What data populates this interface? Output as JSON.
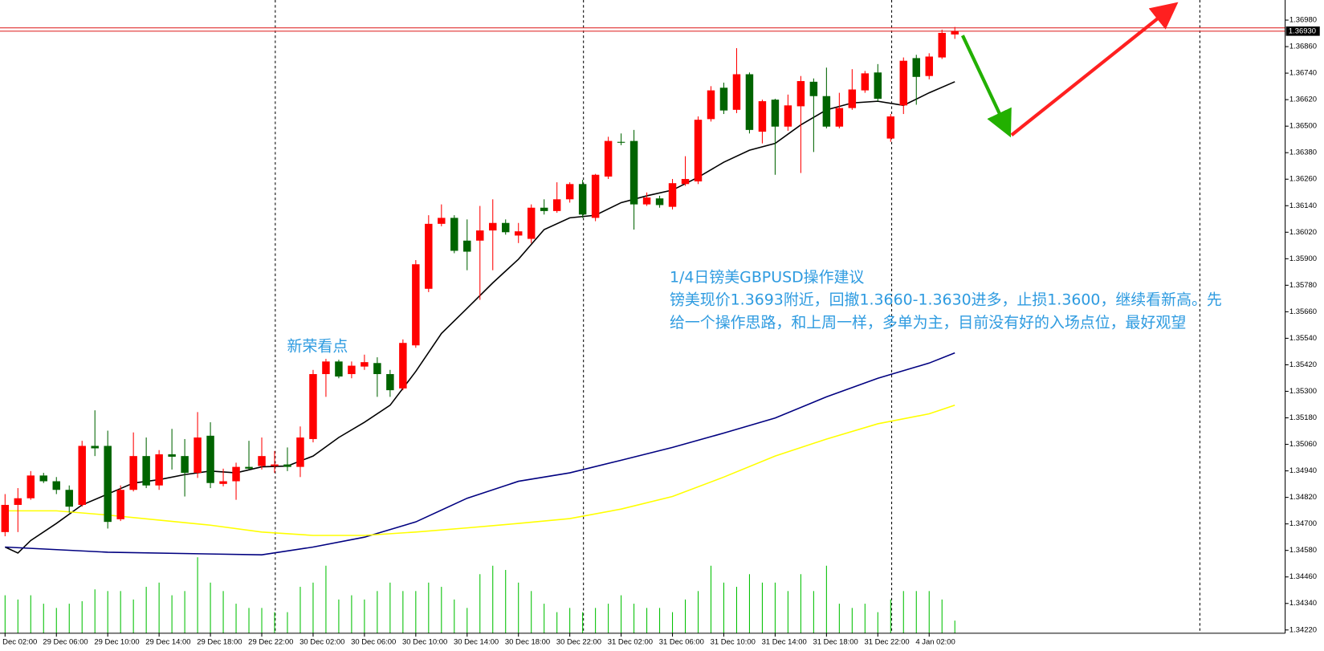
{
  "chart_data": {
    "type": "candlestick",
    "categories": [
      "Dec 02:00",
      null,
      null,
      null,
      "29 Dec 06:00",
      null,
      null,
      null,
      "29 Dec 10:00",
      null,
      null,
      null,
      "29 Dec 14:00",
      null,
      null,
      null,
      "29 Dec 18:00",
      null,
      null,
      null,
      "29 Dec 22:00",
      null,
      null,
      null,
      "30 Dec 02:00",
      null,
      null,
      null,
      "30 Dec 06:00",
      null,
      null,
      null,
      "30 Dec 10:00",
      null,
      null,
      null,
      "30 Dec 14:00",
      null,
      null,
      null,
      "30 Dec 18:00",
      null,
      null,
      null,
      "30 Dec 22:00",
      null,
      null,
      null,
      "31 Dec 02:00",
      null,
      null,
      null,
      "31 Dec 06:00",
      null,
      null,
      null,
      "31 Dec 10:00",
      null,
      null,
      null,
      "31 Dec 14:00",
      null,
      null,
      null,
      "31 Dec 18:00",
      null,
      null,
      null,
      "31 Dec 22:00",
      null,
      null,
      null,
      "4 Jan 02:00",
      null,
      null
    ],
    "open": [
      1.34663,
      1.34786,
      1.34816,
      1.34919,
      1.34893,
      1.34854,
      1.34786,
      1.35053,
      1.35053,
      1.34721,
      1.34854,
      1.35007,
      1.34874,
      1.35015,
      1.35007,
      1.34931,
      1.35099,
      1.34881,
      1.34893,
      1.34958,
      1.34962,
      1.34962,
      1.34969,
      1.34958,
      1.35084,
      1.35378,
      1.35435,
      1.35378,
      1.35412,
      1.35428,
      1.35378,
      1.35313,
      1.35508,
      1.35764,
      1.36058,
      1.36085,
      1.35982,
      1.35982,
      1.36028,
      1.36062,
      1.36005,
      1.3599,
      1.36131,
      1.36116,
      1.36169,
      1.36238,
      1.36085,
      1.36272,
      1.36429,
      1.36433,
      1.36146,
      1.36173,
      1.36135,
      1.36238,
      1.3625,
      1.36532,
      1.36674,
      1.36574,
      1.36735,
      1.36475,
      1.3662,
      1.36498,
      1.3659,
      1.36701,
      1.36636,
      1.36498,
      1.36582,
      1.36662,
      1.36743,
      1.36444,
      1.36594,
      1.36808,
      1.36727,
      1.36811,
      1.36915
    ],
    "high": [
      1.34835,
      1.34862,
      1.34939,
      1.34931,
      1.34912,
      1.34874,
      1.35076,
      1.35214,
      1.35122,
      1.34874,
      1.35114,
      1.35091,
      1.35034,
      1.3513,
      1.35084,
      1.35206,
      1.3516,
      1.3495,
      1.34977,
      1.35076,
      1.35091,
      1.3503,
      1.35046,
      1.35141,
      1.35397,
      1.35447,
      1.35443,
      1.35435,
      1.35466,
      1.35454,
      1.35397,
      1.35535,
      1.35894,
      1.36097,
      1.36146,
      1.36097,
      1.36078,
      1.36139,
      1.36169,
      1.36078,
      1.36062,
      1.36146,
      1.36169,
      1.36246,
      1.36246,
      1.36257,
      1.36284,
      1.36452,
      1.36467,
      1.36483,
      1.362,
      1.36185,
      1.36261,
      1.36364,
      1.36544,
      1.36681,
      1.36697,
      1.36853,
      1.36743,
      1.3662,
      1.36624,
      1.36643,
      1.36727,
      1.36716,
      1.36765,
      1.36651,
      1.36758,
      1.3675,
      1.36781,
      1.36555,
      1.36811,
      1.36823,
      1.3683,
      1.36937,
      1.36949
    ],
    "low": [
      1.34644,
      1.34663,
      1.34809,
      1.34885,
      1.34835,
      1.34751,
      1.34778,
      1.35007,
      1.34679,
      1.34713,
      1.34847,
      1.34862,
      1.34854,
      1.34946,
      1.34824,
      1.34908,
      1.34862,
      1.3487,
      1.34809,
      1.34946,
      1.34946,
      1.34931,
      1.34939,
      1.34912,
      1.35069,
      1.35275,
      1.35359,
      1.35359,
      1.35397,
      1.35275,
      1.35275,
      1.35305,
      1.35497,
      1.35749,
      1.36047,
      1.35925,
      1.35848,
      1.35714,
      1.35848,
      1.36009,
      1.35971,
      1.35971,
      1.361,
      1.36108,
      1.36154,
      1.36085,
      1.3607,
      1.36261,
      1.36414,
      1.36032,
      1.36139,
      1.36131,
      1.36123,
      1.3623,
      1.36238,
      1.36521,
      1.36555,
      1.36559,
      1.36467,
      1.36422,
      1.3628,
      1.36479,
      1.36288,
      1.36383,
      1.3649,
      1.3649,
      1.36574,
      1.36651,
      1.36613,
      1.36429,
      1.36555,
      1.36597,
      1.36712,
      1.36804,
      1.36895
    ],
    "close": [
      1.34786,
      1.34816,
      1.34919,
      1.34893,
      1.34854,
      1.34778,
      1.35053,
      1.35042,
      1.34709,
      1.34854,
      1.35007,
      1.34874,
      1.35015,
      1.35004,
      1.34931,
      1.35091,
      1.34885,
      1.34893,
      1.34958,
      1.3495,
      1.35007,
      1.34969,
      1.34958,
      1.35091,
      1.35378,
      1.35435,
      1.35367,
      1.35416,
      1.35432,
      1.35378,
      1.35305,
      1.35519,
      1.35875,
      1.36058,
      1.36085,
      1.35936,
      1.35932,
      1.36028,
      1.36062,
      1.3602,
      1.36024,
      1.36131,
      1.36116,
      1.36169,
      1.36238,
      1.361,
      1.3628,
      1.36433,
      1.36425,
      1.36146,
      1.36177,
      1.36143,
      1.36242,
      1.36261,
      1.36529,
      1.36662,
      1.36571,
      1.36735,
      1.36483,
      1.36613,
      1.36498,
      1.36594,
      1.36704,
      1.36636,
      1.36498,
      1.36582,
      1.36666,
      1.36739,
      1.36624,
      1.36544,
      1.36796,
      1.36723,
      1.36815,
      1.36922,
      1.3693
    ],
    "up_color": "#ff0000",
    "down_color": "#006400",
    "volume": [
      45,
      40,
      45,
      35,
      30,
      35,
      38,
      52,
      50,
      50,
      40,
      55,
      60,
      45,
      50,
      90,
      60,
      50,
      35,
      30,
      30,
      25,
      25,
      55,
      60,
      80,
      40,
      45,
      40,
      50,
      60,
      50,
      50,
      60,
      55,
      40,
      30,
      70,
      80,
      75,
      60,
      50,
      35,
      25,
      30,
      25,
      30,
      35,
      45,
      35,
      30,
      30,
      25,
      40,
      50,
      80,
      60,
      55,
      70,
      60,
      60,
      50,
      70,
      50,
      80,
      35,
      30,
      35,
      25,
      40,
      50,
      50,
      50,
      40,
      15
    ],
    "volume_color": "#00c000",
    "series": [
      {
        "color": "#000000",
        "x": [
          0,
          1,
          2,
          4,
          6,
          8,
          10,
          12,
          14,
          16,
          18,
          20,
          22,
          24,
          26,
          28,
          30,
          32,
          34,
          36,
          38,
          40,
          42,
          44,
          46,
          48,
          50,
          52,
          54,
          56,
          58,
          60,
          62,
          64,
          66,
          68,
          70,
          72,
          74
        ],
        "values": [
          1.34595,
          1.34568,
          1.34625,
          1.34702,
          1.34786,
          1.34835,
          1.34885,
          1.349,
          1.34923,
          1.34939,
          1.34931,
          1.34958,
          1.34962,
          1.35007,
          1.35091,
          1.3516,
          1.35237,
          1.3539,
          1.35562,
          1.35676,
          1.35791,
          1.35898,
          1.36032,
          1.36085,
          1.36097,
          1.36154,
          1.36185,
          1.36211,
          1.36269,
          1.36337,
          1.36391,
          1.36422,
          1.36506,
          1.36574,
          1.36605,
          1.36613,
          1.36594,
          1.36651,
          1.36701
        ]
      },
      {
        "color": "#000080",
        "x": [
          0,
          8,
          16,
          20,
          24,
          28,
          32,
          36,
          40,
          44,
          48,
          52,
          56,
          60,
          64,
          68,
          72,
          74
        ],
        "values": [
          1.34595,
          1.34572,
          1.34564,
          1.3456,
          1.34595,
          1.3464,
          1.34709,
          1.34816,
          1.34893,
          1.34931,
          1.34988,
          1.35046,
          1.35111,
          1.35179,
          1.35275,
          1.35359,
          1.35428,
          1.35474
        ]
      },
      {
        "color": "#ffff00",
        "x": [
          0,
          4,
          8,
          12,
          16,
          20,
          24,
          28,
          32,
          36,
          40,
          44,
          48,
          52,
          56,
          60,
          64,
          68,
          72,
          74
        ],
        "values": [
          1.34759,
          1.34759,
          1.3474,
          1.34717,
          1.34694,
          1.34663,
          1.34648,
          1.34648,
          1.34663,
          1.34682,
          1.34702,
          1.34724,
          1.34767,
          1.34824,
          1.34912,
          1.35007,
          1.35084,
          1.35153,
          1.35198,
          1.35237
        ]
      }
    ],
    "price_lines": [
      1.36945,
      1.3693
    ],
    "current_price": {
      "value": 1.3693,
      "label": "1.36930"
    },
    "ylim": [
      1.34205,
      1.37071
    ],
    "yticks": [
      {
        "value": 1.3422,
        "label": "1.34220"
      },
      {
        "value": 1.3434,
        "label": "1.34340"
      },
      {
        "value": 1.3446,
        "label": "1.34460"
      },
      {
        "value": 1.3458,
        "label": "1.34580"
      },
      {
        "value": 1.347,
        "label": "1.34700"
      },
      {
        "value": 1.3482,
        "label": "1.34820"
      },
      {
        "value": 1.3494,
        "label": "1.34940"
      },
      {
        "value": 1.3506,
        "label": "1.35060"
      },
      {
        "value": 1.3518,
        "label": "1.35180"
      },
      {
        "value": 1.353,
        "label": "1.35300"
      },
      {
        "value": 1.3542,
        "label": "1.35420"
      },
      {
        "value": 1.3554,
        "label": "1.35540"
      },
      {
        "value": 1.3566,
        "label": "1.35660"
      },
      {
        "value": 1.3578,
        "label": "1.35780"
      },
      {
        "value": 1.359,
        "label": "1.35900"
      },
      {
        "value": 1.3602,
        "label": "1.36020"
      },
      {
        "value": 1.3614,
        "label": "1.36140"
      },
      {
        "value": 1.3626,
        "label": "1.36260"
      },
      {
        "value": 1.3638,
        "label": "1.36380"
      },
      {
        "value": 1.365,
        "label": "1.36500"
      },
      {
        "value": 1.3662,
        "label": "1.36620"
      },
      {
        "value": 1.3674,
        "label": "1.36740"
      },
      {
        "value": 1.3686,
        "label": "1.36860"
      },
      {
        "value": 1.3698,
        "label": "1.36980"
      }
    ],
    "annotations": [
      "新荣看点",
      "1/4日镑美GBPUSD操作建议",
      "镑美现价1.3693附近，回撤1.3660-1.3630进多，止损1.3600，继续看新高。先",
      "给一个操作思路，和上周一样，多单为主，目前没有好的入场点位，最好观望"
    ]
  }
}
